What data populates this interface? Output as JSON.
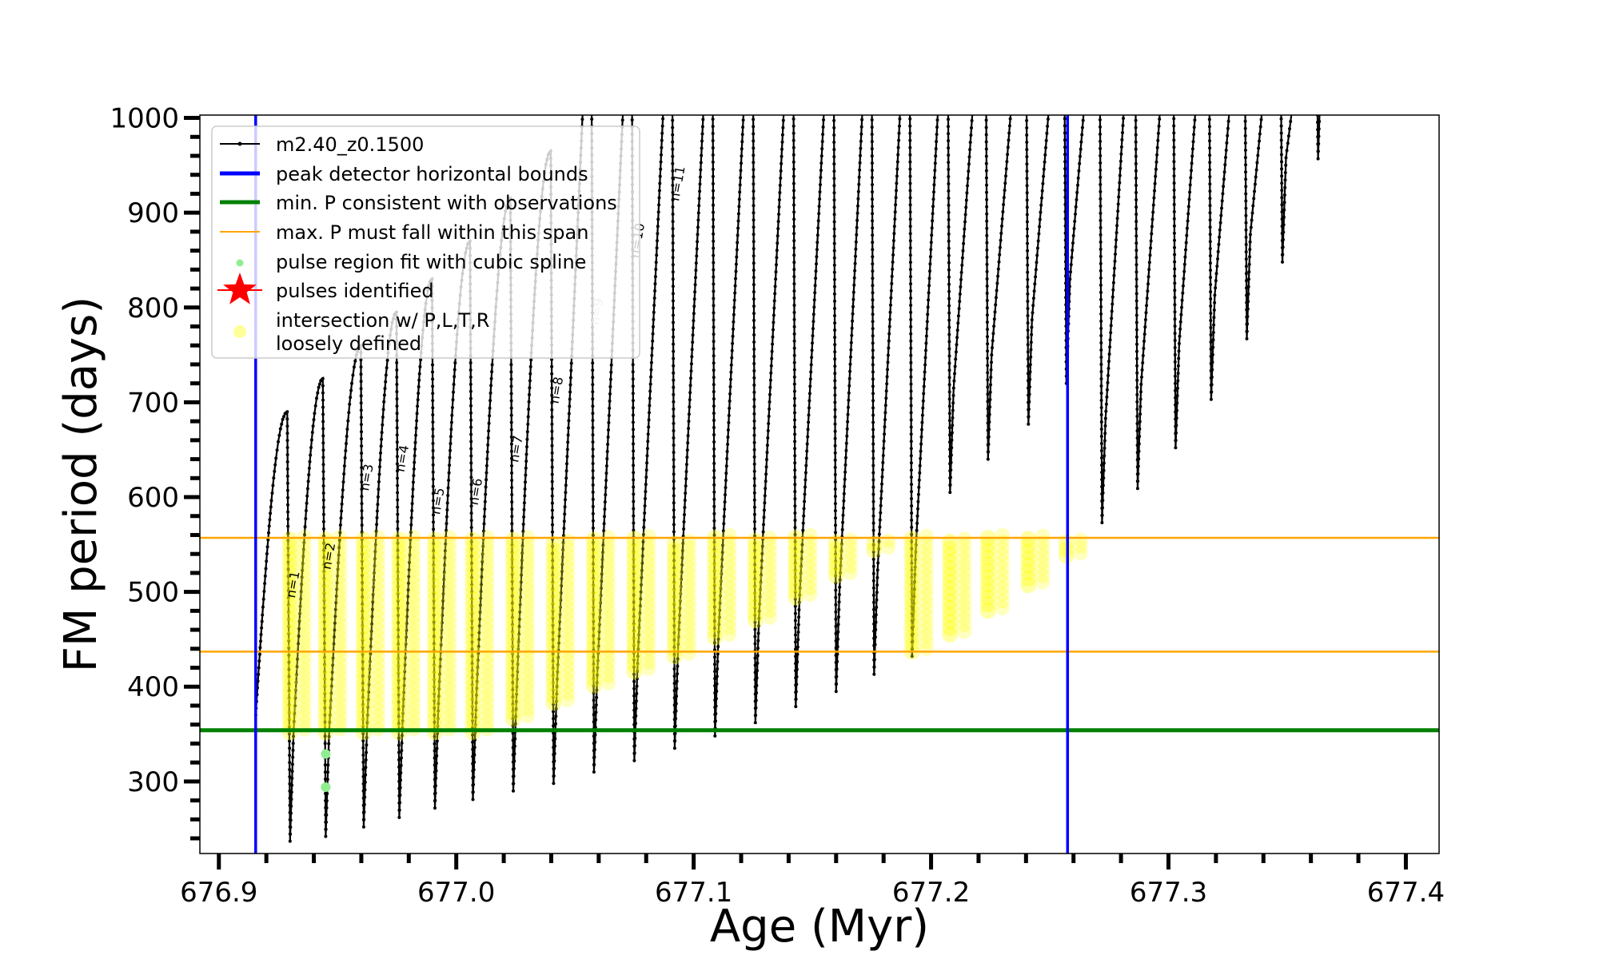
{
  "chart_data": {
    "type": "line",
    "xlabel": "Age (Myr)",
    "ylabel": "FM period (days)",
    "xlim": [
      676.892,
      677.414
    ],
    "ylim": [
      224,
      1003
    ],
    "x_ticks": [
      "676.9",
      "677.0",
      "677.1",
      "677.2",
      "677.3",
      "677.4"
    ],
    "y_ticks": [
      "300",
      "400",
      "500",
      "600",
      "700",
      "800",
      "900",
      "1000"
    ],
    "grid": false,
    "legend_position": "top-left",
    "legend": [
      {
        "label": "m2.40_z0.1500",
        "style": "line-dots",
        "color": "#000000"
      },
      {
        "label": "peak detector horizontal bounds",
        "style": "line-thick",
        "color": "#0000ff"
      },
      {
        "label": "min. P consistent with observations",
        "style": "line-thick",
        "color": "#008000"
      },
      {
        "label": "max. P must fall within this span",
        "style": "line-thin",
        "color": "#ffa500"
      },
      {
        "label": "pulse region fit with cubic spline",
        "style": "dot",
        "color": "#90ee90"
      },
      {
        "label": "pulses identified",
        "style": "star",
        "color": "#ff0000"
      },
      {
        "label": "intersection w/ P,L,T,R",
        "label2": "loosely defined",
        "style": "circle",
        "color": "#ffff99"
      }
    ],
    "reference_lines": {
      "peak_detector_bounds_x": [
        676.9155,
        677.2575
      ],
      "min_P_observations_y": 354,
      "max_P_span_y": [
        437,
        557
      ]
    },
    "series": [
      {
        "name": "m2.40_z0.1500",
        "color": "#000000",
        "pulses": [
          {
            "age": 676.93,
            "peak": 690,
            "min": 237
          },
          {
            "age": 676.945,
            "peak": 725,
            "min": 242
          },
          {
            "age": 676.961,
            "peak": 760,
            "min": 252
          },
          {
            "age": 676.976,
            "peak": 795,
            "min": 262
          },
          {
            "age": 676.991,
            "peak": 830,
            "min": 272
          },
          {
            "age": 677.007,
            "peak": 870,
            "min": 281
          },
          {
            "age": 677.024,
            "peak": 915,
            "min": 290
          },
          {
            "age": 677.041,
            "peak": 965,
            "min": 298
          },
          {
            "age": 677.058,
            "peak": 1003,
            "min": 310
          },
          {
            "age": 677.075,
            "peak": 1003,
            "min": 322
          },
          {
            "age": 677.092,
            "peak": 1003,
            "min": 335
          },
          {
            "age": 677.109,
            "peak": 1003,
            "min": 348
          },
          {
            "age": 677.126,
            "peak": 1003,
            "min": 362
          },
          {
            "age": 677.143,
            "peak": 1003,
            "min": 379
          },
          {
            "age": 677.16,
            "peak": 1003,
            "min": 395
          },
          {
            "age": 677.176,
            "peak": 1003,
            "min": 413
          },
          {
            "age": 677.192,
            "peak": 1003,
            "min": 432
          },
          {
            "age": 677.208,
            "peak": 1003,
            "min": 605
          },
          {
            "age": 677.224,
            "peak": 1003,
            "min": 640
          },
          {
            "age": 677.241,
            "peak": 1003,
            "min": 677
          },
          {
            "age": 677.257,
            "peak": 1003,
            "min": 720
          },
          {
            "age": 677.272,
            "peak": 1003,
            "min": 573
          },
          {
            "age": 677.287,
            "peak": 1003,
            "min": 609
          },
          {
            "age": 677.303,
            "peak": 1003,
            "min": 652
          },
          {
            "age": 677.318,
            "peak": 1003,
            "min": 703
          },
          {
            "age": 677.333,
            "peak": 1003,
            "min": 767
          },
          {
            "age": 677.348,
            "peak": 1003,
            "min": 848
          },
          {
            "age": 677.363,
            "peak": 1003,
            "min": 957
          }
        ]
      }
    ],
    "highlight_minima": [
      {
        "age": 676.93,
        "min": 352
      },
      {
        "age": 676.945,
        "min": 352
      },
      {
        "age": 676.961,
        "min": 352
      },
      {
        "age": 676.976,
        "min": 352
      },
      {
        "age": 676.991,
        "min": 352
      },
      {
        "age": 677.007,
        "min": 352
      },
      {
        "age": 677.024,
        "min": 366
      },
      {
        "age": 677.041,
        "min": 383
      },
      {
        "age": 677.058,
        "min": 401
      },
      {
        "age": 677.075,
        "min": 416
      },
      {
        "age": 677.092,
        "min": 432
      },
      {
        "age": 677.109,
        "min": 452
      },
      {
        "age": 677.126,
        "min": 470
      },
      {
        "age": 677.143,
        "min": 494
      },
      {
        "age": 677.16,
        "min": 517
      },
      {
        "age": 677.176,
        "min": 544
      },
      {
        "age": 677.192,
        "min": 437
      },
      {
        "age": 677.208,
        "min": 455
      },
      {
        "age": 677.224,
        "min": 480
      },
      {
        "age": 677.241,
        "min": 507
      },
      {
        "age": 677.257,
        "min": 538
      }
    ],
    "green_points": [
      {
        "age": 676.945,
        "value": 329
      },
      {
        "age": 676.945,
        "value": 294
      }
    ],
    "annotations": [
      {
        "text": "n=1",
        "age": 676.933,
        "value": 507
      },
      {
        "text": "n=2",
        "age": 676.948,
        "value": 537
      },
      {
        "text": "n=3",
        "age": 676.964,
        "value": 620
      },
      {
        "text": "n=4",
        "age": 676.979,
        "value": 640
      },
      {
        "text": "n=5",
        "age": 676.994,
        "value": 595
      },
      {
        "text": "n=6",
        "age": 677.01,
        "value": 605
      },
      {
        "text": "n=7",
        "age": 677.027,
        "value": 650
      },
      {
        "text": "n=8",
        "age": 677.044,
        "value": 712
      },
      {
        "text": "n=9",
        "age": 677.061,
        "value": 795
      },
      {
        "text": "n=10",
        "age": 677.078,
        "value": 870
      },
      {
        "text": "n=11",
        "age": 677.095,
        "value": 930
      }
    ]
  }
}
